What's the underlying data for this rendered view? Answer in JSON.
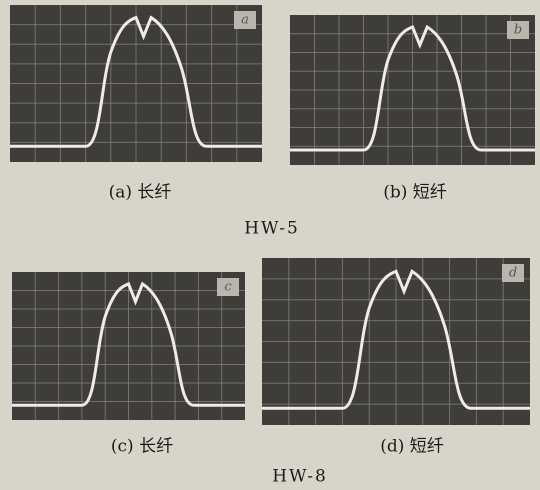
{
  "panels": [
    {
      "tag": "a",
      "caption": "(a) 长纤"
    },
    {
      "tag": "b",
      "caption": "(b) 短纤"
    },
    {
      "tag": "c",
      "caption": "(c) 长纤"
    },
    {
      "tag": "d",
      "caption": "(d) 短纤"
    }
  ],
  "groups": [
    {
      "label": "HW-5"
    },
    {
      "label": "HW-8"
    }
  ]
}
